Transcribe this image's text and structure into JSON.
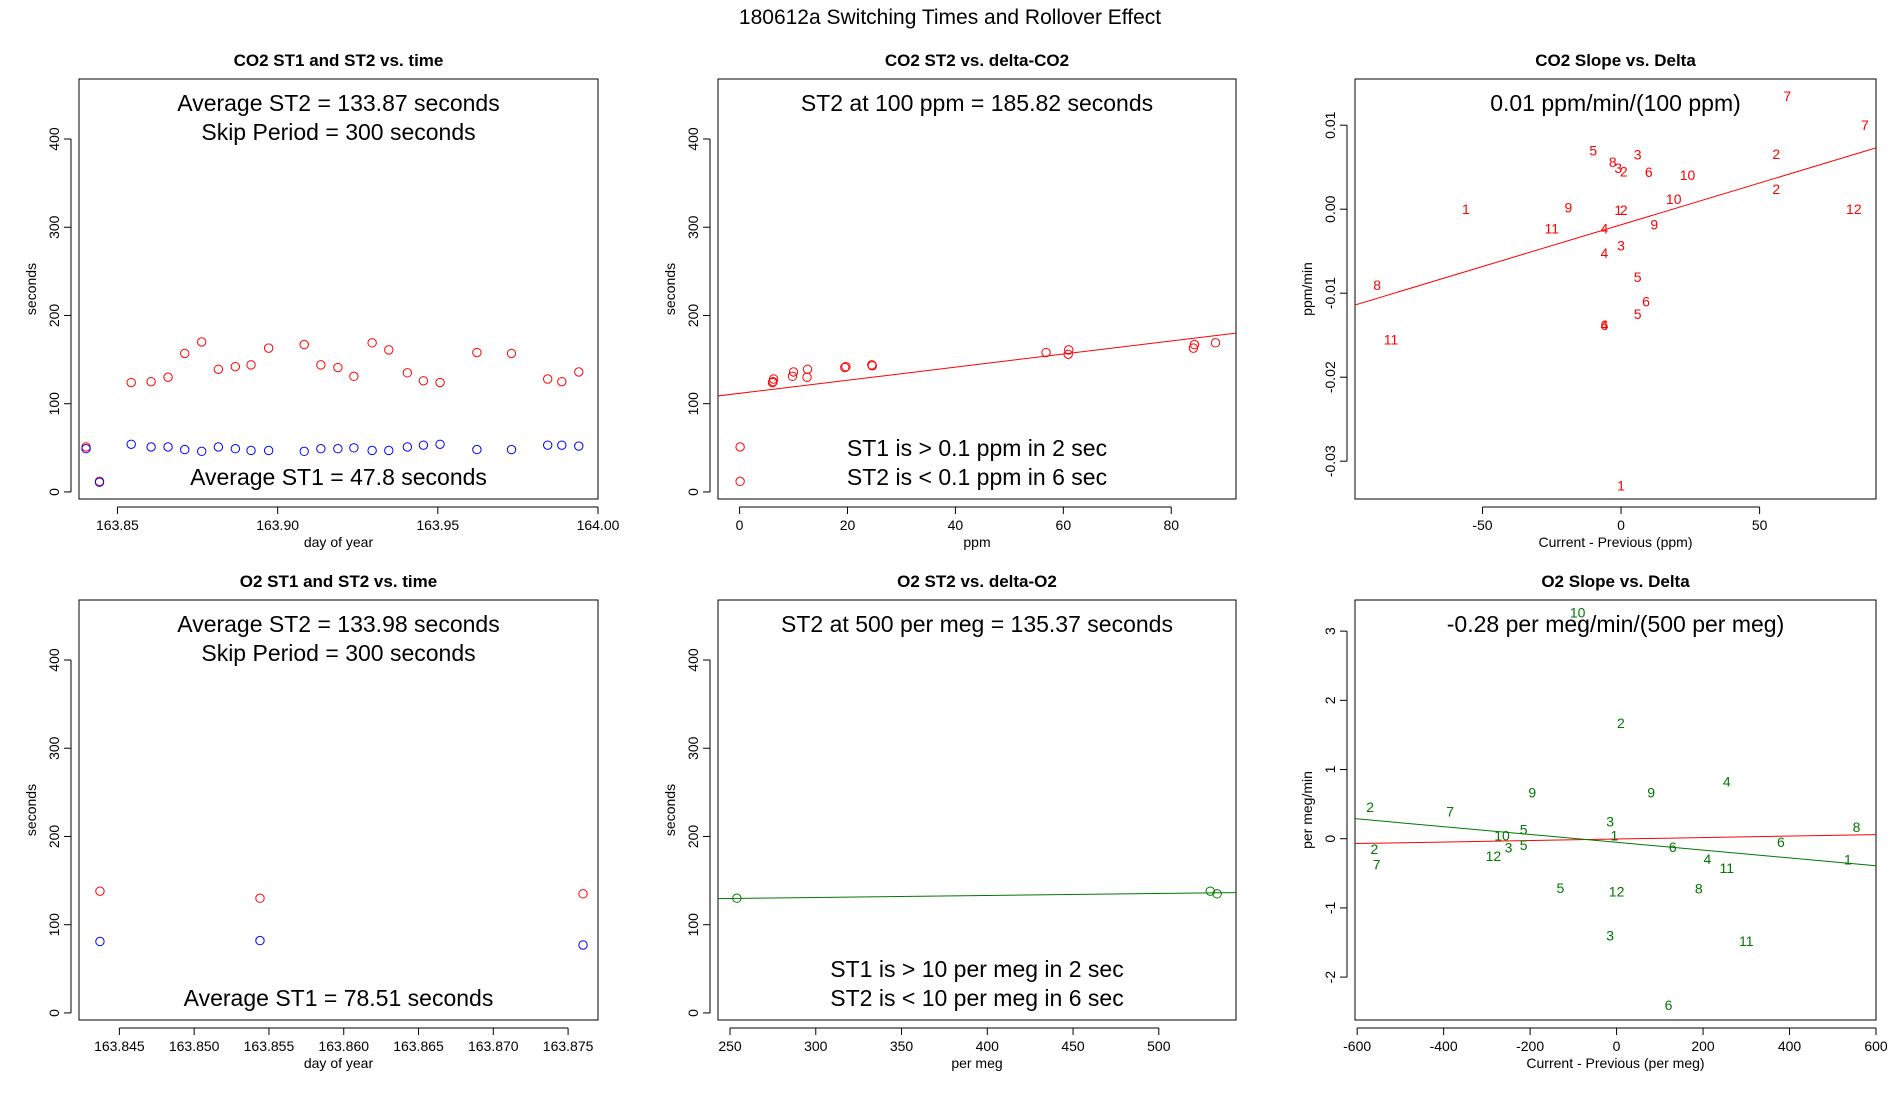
{
  "figure_title": "180612a   Switching Times and Rollover Effect",
  "colors": {
    "red": "#ff0000",
    "blue": "#0000ff",
    "green": "#007700",
    "axis": "#000000"
  },
  "chart_data": [
    {
      "id": "p1",
      "type": "scatter",
      "title": "CO2 ST1 and ST2 vs. time",
      "xlabel": "day of year",
      "ylabel": "seconds",
      "xlim": [
        163.838,
        164.0
      ],
      "ylim": [
        -8,
        468
      ],
      "xticks": [
        163.85,
        163.9,
        163.95,
        164.0
      ],
      "xtick_labels": [
        "163.85",
        "163.90",
        "163.95",
        "164.00"
      ],
      "yticks": [
        0,
        100,
        200,
        300,
        400
      ],
      "ytick_labels": [
        "0",
        "100",
        "200",
        "300",
        "400"
      ],
      "notes_top": [
        "Average ST2 =  133.87  seconds",
        "Skip Period =  300  seconds"
      ],
      "notes_bottom": [
        "Average ST1 =  47.8  seconds"
      ],
      "series": [
        {
          "name": "ST2",
          "color": "red",
          "x": [
            163.8402,
            163.8444,
            163.8543,
            163.8605,
            163.8658,
            163.871,
            163.8763,
            163.8815,
            163.8868,
            163.8917,
            163.8972,
            163.9083,
            163.9135,
            163.9188,
            163.9238,
            163.9295,
            163.9347,
            163.9405,
            163.9455,
            163.9507,
            163.9622,
            163.973,
            163.9843,
            163.9887,
            163.994
          ],
          "y": [
            51,
            12,
            124,
            125,
            130,
            157,
            170,
            139,
            142,
            144,
            163,
            167,
            144,
            141,
            131,
            169,
            161,
            135,
            126,
            124,
            158,
            157,
            128,
            125,
            136
          ]
        },
        {
          "name": "ST1",
          "color": "blue",
          "x": [
            163.8402,
            163.8444,
            163.8543,
            163.8605,
            163.8658,
            163.871,
            163.8763,
            163.8815,
            163.8868,
            163.8917,
            163.8972,
            163.9083,
            163.9135,
            163.9188,
            163.9238,
            163.9295,
            163.9347,
            163.9405,
            163.9455,
            163.9507,
            163.9622,
            163.973,
            163.9843,
            163.9887,
            163.994
          ],
          "y": [
            49,
            11,
            54,
            51,
            51,
            48,
            46,
            51,
            49,
            47,
            47,
            46,
            49,
            49,
            50,
            47,
            47,
            51,
            53,
            54,
            48,
            48,
            53,
            53,
            52
          ]
        }
      ]
    },
    {
      "id": "p2",
      "type": "scatter",
      "title": "CO2 ST2 vs. delta-CO2",
      "xlabel": "ppm",
      "ylabel": "seconds",
      "xlim": [
        -4,
        92
      ],
      "ylim": [
        -8,
        468
      ],
      "xticks": [
        0,
        20,
        40,
        60,
        80
      ],
      "xtick_labels": [
        "0",
        "20",
        "40",
        "60",
        "80"
      ],
      "yticks": [
        0,
        100,
        200,
        300,
        400
      ],
      "ytick_labels": [
        "0",
        "100",
        "200",
        "300",
        "400"
      ],
      "notes_top": [
        "ST2 at 100 ppm =  185.82  seconds"
      ],
      "notes_bottom": [
        "ST1 is > 0.1 ppm in 2 sec",
        "ST2 is < 0.1 ppm in 6 sec"
      ],
      "series": [
        {
          "name": "ST2",
          "color": "red",
          "x": [
            0.1,
            0.1,
            6.1,
            6.2,
            6.3,
            9.8,
            10.0,
            12.5,
            12.6,
            19.5,
            19.7,
            24.5,
            24.6,
            56.8,
            60.9,
            61.0,
            84.1,
            84.3,
            88.2
          ],
          "y": [
            51,
            12,
            124,
            125,
            128,
            131,
            136,
            130,
            139,
            141,
            142,
            144,
            143,
            158,
            156,
            161,
            163,
            167,
            169
          ]
        }
      ],
      "fit_lines": [
        {
          "color": "red",
          "x": [
            -4,
            92
          ],
          "y": [
            108.8,
            180.0
          ]
        }
      ]
    },
    {
      "id": "p3",
      "type": "scatter",
      "title": "CO2 Slope vs. Delta",
      "xlabel": "Current - Previous (ppm)",
      "ylabel": "ppm/min",
      "xlim": [
        -96,
        92
      ],
      "ylim": [
        -0.0345,
        0.0155
      ],
      "xticks": [
        -50,
        0,
        50
      ],
      "xtick_labels": [
        "-50",
        "0",
        "50"
      ],
      "yticks": [
        -0.03,
        -0.02,
        -0.01,
        0.0,
        0.01
      ],
      "ytick_labels": [
        "-0.03",
        "-0.02",
        "-0.01",
        "0.00",
        "0.01"
      ],
      "notes_top": [
        "0.01  ppm/min/(100 ppm)"
      ],
      "notes_bottom": [],
      "point_labels": {
        "color": "red",
        "x": [
          60,
          88,
          56,
          56,
          84,
          -10,
          -3,
          -1,
          6,
          1,
          10,
          24,
          19,
          -56,
          -19,
          -25,
          -6,
          -1,
          1,
          12,
          -6,
          0,
          6,
          -6,
          9,
          6,
          -6,
          -88,
          -83,
          0
        ],
        "y": [
          0.0135,
          0.01,
          0.0066,
          0.0024,
          0.0,
          0.007,
          0.0056,
          0.0049,
          0.0065,
          0.0045,
          0.0044,
          0.0041,
          0.0012,
          0.0,
          0.0002,
          -0.0023,
          -0.0023,
          -0.0001,
          -0.0001,
          -0.0018,
          -0.0052,
          -0.0043,
          -0.0081,
          -0.0138,
          -0.011,
          -0.0125,
          -0.0138,
          -0.009,
          -0.0155,
          -0.0329
        ],
        "labels": [
          "7",
          "7",
          "2",
          "2",
          "12",
          "5",
          "8",
          "3",
          "3",
          "2",
          "6",
          "10",
          "10",
          "1",
          "9",
          "11",
          "4",
          "1",
          "2",
          "9",
          "4",
          "3",
          "5",
          "6",
          "6",
          "5",
          "4",
          "8",
          "11",
          "1"
        ]
      },
      "fit_lines": [
        {
          "color": "red",
          "x": [
            -96,
            92
          ],
          "y": [
            -0.0114,
            0.0073
          ]
        }
      ]
    },
    {
      "id": "p4",
      "type": "scatter",
      "title": "O2 ST1 and ST2 vs. time",
      "xlabel": "day of year",
      "ylabel": "seconds",
      "xlim": [
        163.8423,
        163.877
      ],
      "ylim": [
        -8,
        468
      ],
      "xticks": [
        163.845,
        163.85,
        163.855,
        163.86,
        163.865,
        163.87,
        163.875
      ],
      "xtick_labels": [
        "163.845",
        "163.850",
        "163.855",
        "163.860",
        "163.865",
        "163.870",
        "163.875"
      ],
      "yticks": [
        0,
        100,
        200,
        300,
        400
      ],
      "ytick_labels": [
        "0",
        "100",
        "200",
        "300",
        "400"
      ],
      "notes_top": [
        "Average ST2 =  133.98  seconds",
        "Skip Period =  300  seconds"
      ],
      "notes_bottom": [
        "Average ST1 =  78.51  seconds"
      ],
      "series": [
        {
          "name": "ST2",
          "color": "red",
          "x": [
            163.8437,
            163.8544,
            163.876
          ],
          "y": [
            138,
            130,
            135
          ]
        },
        {
          "name": "ST1",
          "color": "blue",
          "x": [
            163.8437,
            163.8544,
            163.876
          ],
          "y": [
            81,
            82,
            77
          ]
        }
      ]
    },
    {
      "id": "p5",
      "type": "scatter",
      "title": "O2 ST2 vs. delta-O2",
      "xlabel": "per meg",
      "ylabel": "seconds",
      "xlim": [
        243,
        545
      ],
      "ylim": [
        -8,
        468
      ],
      "xticks": [
        250,
        300,
        350,
        400,
        450,
        500
      ],
      "xtick_labels": [
        "250",
        "300",
        "350",
        "400",
        "450",
        "500"
      ],
      "yticks": [
        0,
        100,
        200,
        300,
        400
      ],
      "ytick_labels": [
        "0",
        "100",
        "200",
        "300",
        "400"
      ],
      "notes_top": [
        "ST2 at 500 per meg =  135.37  seconds"
      ],
      "notes_bottom": [
        "ST1 is > 10 per meg in 2 sec",
        "ST2 is < 10 per meg in 6 sec"
      ],
      "series": [
        {
          "name": "ST2",
          "color": "green",
          "x": [
            254,
            530,
            534
          ],
          "y": [
            130,
            138,
            135
          ]
        }
      ],
      "fit_lines": [
        {
          "color": "green",
          "x": [
            243,
            545
          ],
          "y": [
            129.5,
            136.4
          ]
        }
      ]
    },
    {
      "id": "p6",
      "type": "scatter",
      "title": "O2 Slope vs. Delta",
      "xlabel": "Current - Previous (per meg)",
      "ylabel": "per meg/min",
      "xlim": [
        -605,
        600
      ],
      "ylim": [
        -2.62,
        3.45
      ],
      "xticks": [
        -600,
        -400,
        -200,
        0,
        200,
        400,
        600
      ],
      "xtick_labels": [
        "-600",
        "-400",
        "-200",
        "0",
        "200",
        "400",
        "600"
      ],
      "yticks": [
        -2,
        -1,
        0,
        1,
        2,
        3
      ],
      "ytick_labels": [
        "-2",
        "-1",
        "0",
        "1",
        "2",
        "3"
      ],
      "notes_top": [
        "-0.28  per meg/min/(500 per meg)"
      ],
      "notes_bottom": [],
      "point_labels": {
        "color": "green",
        "x": [
          -90,
          10,
          -570,
          -385,
          -195,
          255,
          80,
          -560,
          -555,
          -265,
          -215,
          -285,
          -250,
          -215,
          -15,
          -5,
          130,
          210,
          255,
          555,
          380,
          535,
          -130,
          0,
          190,
          300,
          -15,
          120
        ],
        "y": [
          3.27,
          1.67,
          0.46,
          0.39,
          0.67,
          0.83,
          0.67,
          -0.15,
          -0.37,
          0.05,
          0.13,
          -0.25,
          -0.13,
          -0.09,
          0.25,
          0.05,
          -0.12,
          -0.29,
          -0.42,
          0.17,
          -0.05,
          -0.3,
          -0.71,
          -0.76,
          -0.72,
          -1.48,
          -1.4,
          -2.4
        ],
        "labels": [
          "10",
          "2",
          "2",
          "7",
          "9",
          "4",
          "9",
          "2",
          "7",
          "10",
          "5",
          "12",
          "3",
          "5",
          "3",
          "1",
          "6",
          "4",
          "11",
          "8",
          "6",
          "1",
          "5",
          "12",
          "8",
          "11",
          "3",
          "6"
        ]
      },
      "fit_lines": [
        {
          "color": "red",
          "x": [
            -605,
            600
          ],
          "y": [
            -0.07,
            0.06
          ]
        },
        {
          "color": "green",
          "x": [
            -605,
            600
          ],
          "y": [
            0.29,
            -0.39
          ]
        }
      ]
    }
  ]
}
